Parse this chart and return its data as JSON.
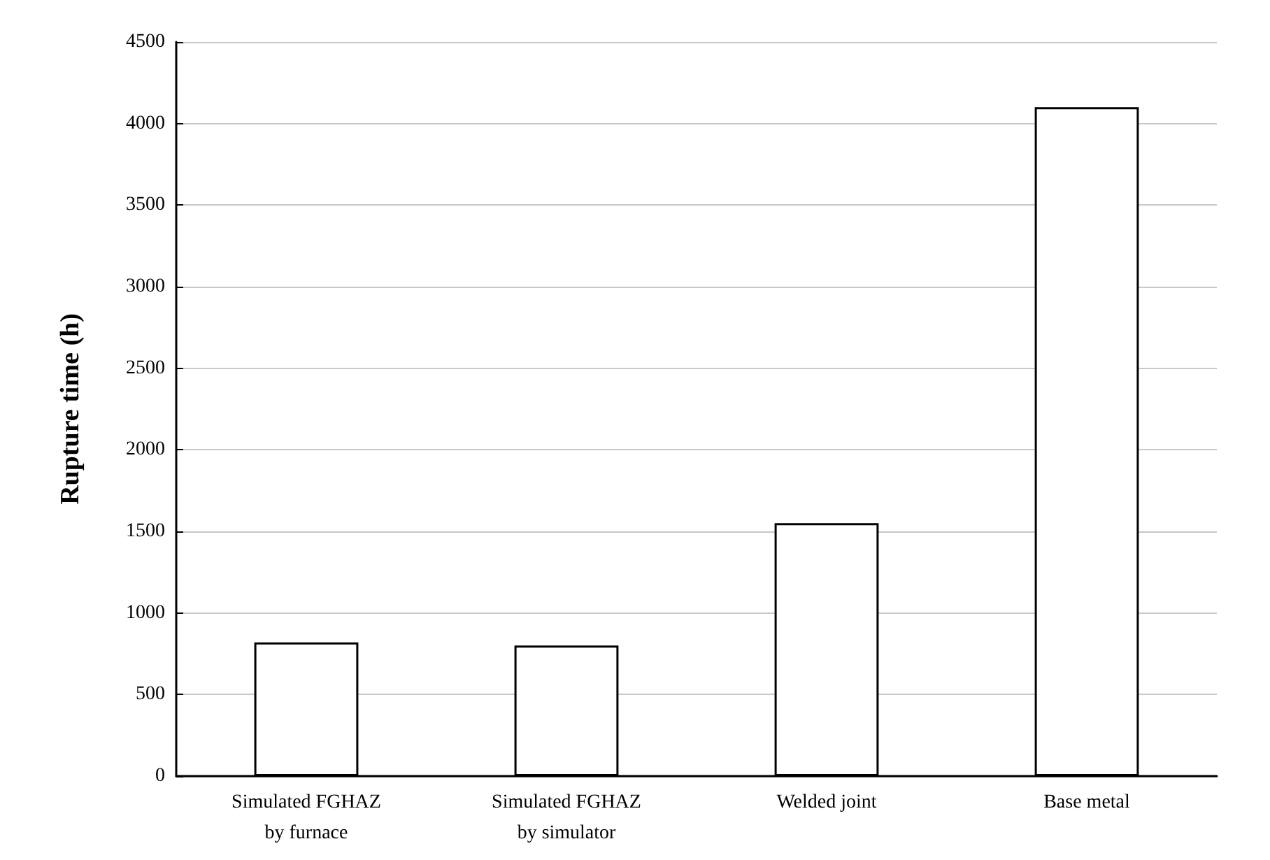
{
  "chart_data": {
    "type": "bar",
    "ylabel": "Rupture time (h)",
    "categories": [
      "Simulated FGHAZ\nby furnace",
      "Simulated FGHAZ\nby simulator",
      "Welded joint",
      "Base metal"
    ],
    "values": [
      820,
      800,
      1550,
      4100
    ],
    "color": "#ffffff",
    "ylim": [
      0,
      4500
    ],
    "yticks": [
      0,
      500,
      1000,
      1500,
      2000,
      2500,
      3000,
      3500,
      4000,
      4500
    ],
    "grid": "y"
  }
}
